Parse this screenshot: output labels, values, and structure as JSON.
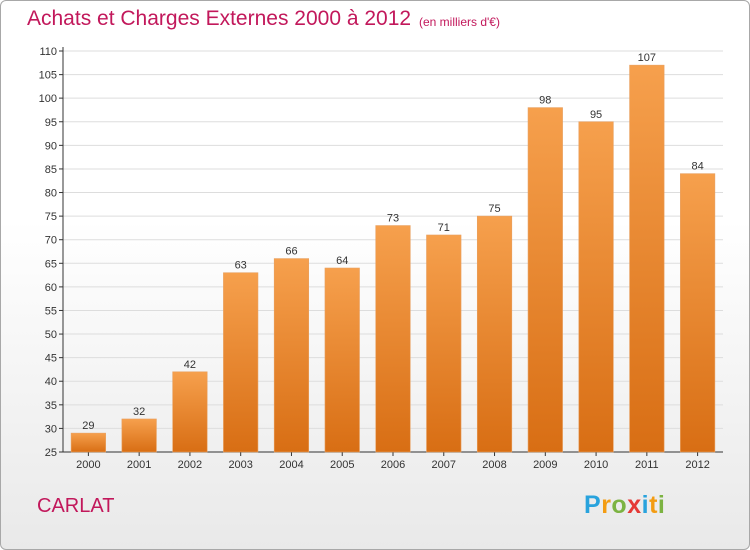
{
  "page": {
    "title": "Achats et Charges Externes 2000 à 2012",
    "subtitle": "(en milliers d'€)",
    "commune": "CARLAT",
    "logo": {
      "letters": [
        "P",
        "r",
        "o",
        "x",
        "i",
        "t",
        "i"
      ]
    }
  },
  "colors": {
    "accent": "#c2185b",
    "bar_top": "#f6a04d",
    "bar_bottom": "#d86e14",
    "axis": "#333333",
    "grid": "#dddddd"
  },
  "chart_data": {
    "type": "bar",
    "title": "Achats et Charges Externes 2000 à 2012",
    "subtitle": "(en milliers d'€)",
    "xlabel": "",
    "ylabel": "",
    "categories": [
      "2000",
      "2001",
      "2002",
      "2003",
      "2004",
      "2005",
      "2006",
      "2007",
      "2008",
      "2009",
      "2010",
      "2011",
      "2012"
    ],
    "values": [
      29,
      32,
      42,
      63,
      66,
      64,
      73,
      71,
      75,
      98,
      95,
      107,
      84
    ],
    "ylim": [
      25,
      110
    ],
    "yticks": [
      25,
      30,
      35,
      40,
      45,
      50,
      55,
      60,
      65,
      70,
      75,
      80,
      85,
      90,
      95,
      100,
      105,
      110
    ],
    "grid": true,
    "legend": "none"
  }
}
